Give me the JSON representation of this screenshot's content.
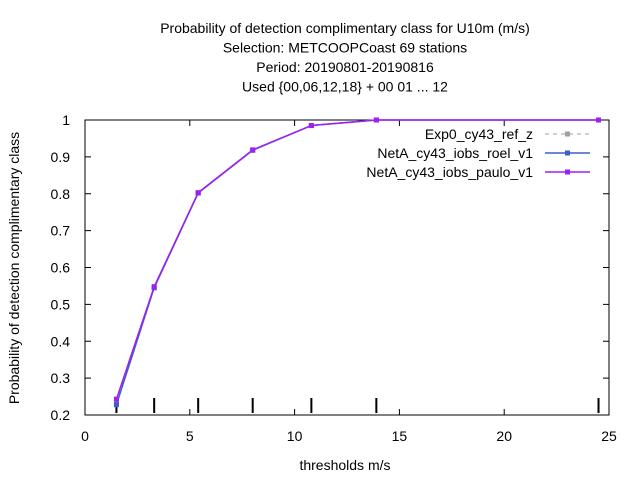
{
  "chart_data": {
    "type": "line",
    "title_lines": [
      "Probability of detection complimentary class  for U10m (m/s)",
      "Selection: METCOOPCoast     69 stations",
      "Period: 20190801-20190816",
      "Used {00,06,12,18} + 00 01 ... 12"
    ],
    "xlabel": "thresholds m/s",
    "ylabel": "Probability of detection complimentary class",
    "xlim": [
      0,
      25
    ],
    "ylim": [
      0.2,
      1.0
    ],
    "xticks": [
      0,
      5,
      10,
      15,
      20,
      25
    ],
    "xtick_labels": [
      "0",
      "5",
      "10",
      "15",
      "20",
      "25"
    ],
    "yticks": [
      0.2,
      0.3,
      0.4,
      0.5,
      0.6,
      0.7,
      0.8,
      0.9,
      1.0
    ],
    "ytick_labels": [
      "0.2",
      "0.3",
      "0.4",
      "0.5",
      "0.6",
      "0.7",
      "0.8",
      "0.9",
      "1"
    ],
    "grid": false,
    "legend_position": "top-right",
    "threshold_marks": [
      1.5,
      3.3,
      5.4,
      8.0,
      10.8,
      13.9,
      24.5
    ],
    "series": [
      {
        "name": "Exp0_cy43_ref_z",
        "color": "#a0a0a0",
        "dash": true,
        "x": [
          1.5,
          3.3,
          5.4,
          8.0,
          10.8,
          13.9,
          24.5
        ],
        "y": [
          0.235,
          0.545,
          0.802,
          0.918,
          0.985,
          1.0,
          1.0
        ]
      },
      {
        "name": "NetA_cy43_iobs_roel_v1",
        "color": "#3a5fcd",
        "dash": false,
        "x": [
          1.5,
          3.3,
          5.4,
          8.0,
          10.8,
          13.9,
          24.5
        ],
        "y": [
          0.228,
          0.545,
          0.802,
          0.918,
          0.985,
          1.0,
          1.0
        ]
      },
      {
        "name": "NetA_cy43_iobs_paulo_v1",
        "color": "#a020f0",
        "dash": false,
        "x": [
          1.5,
          3.3,
          5.4,
          8.0,
          10.8,
          13.9,
          24.5
        ],
        "y": [
          0.243,
          0.548,
          0.803,
          0.919,
          0.985,
          1.0,
          1.0
        ]
      }
    ]
  }
}
